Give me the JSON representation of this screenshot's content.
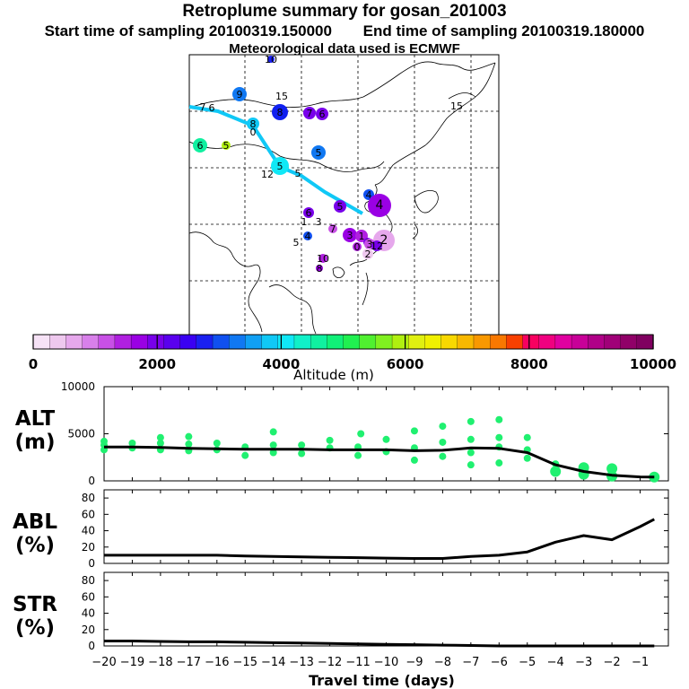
{
  "header": {
    "title": "Retroplume summary for gosan_201003",
    "start_label": "Start time of sampling 20100319.150000",
    "end_label": "End time of sampling 20100319.180000",
    "met_label": "Meteorological data used is ECMWF"
  },
  "colorbar": {
    "label": "Altitude (m)",
    "ticks": [
      "0",
      "2000",
      "4000",
      "6000",
      "8000",
      "10000"
    ],
    "colors": [
      "#f6e2f6",
      "#eec8ee",
      "#e6a8ec",
      "#d880ea",
      "#c850e6",
      "#b020e0",
      "#9a00e4",
      "#7800ea",
      "#5a00ee",
      "#3a00f2",
      "#1a20f0",
      "#1050f0",
      "#1078f2",
      "#10a0f4",
      "#10c8f6",
      "#10e8f6",
      "#10f0c8",
      "#10f0a0",
      "#10f078",
      "#20f050",
      "#50f030",
      "#80f020",
      "#b0f010",
      "#e0f010",
      "#f0f000",
      "#f8d800",
      "#f8b800",
      "#f89800",
      "#f87800",
      "#f84000",
      "#f80060",
      "#f00080",
      "#e000a0",
      "#c80098",
      "#b00088",
      "#a00078",
      "#900068",
      "#800060"
    ]
  },
  "map": {
    "markers": [
      {
        "label": "10",
        "color": "#1a20f0"
      },
      {
        "label": "9",
        "color": "#1078f2"
      },
      {
        "label": "15",
        "color": "#10a0f4"
      },
      {
        "label": "7",
        "color": "#10a0f4"
      },
      {
        "label": "6",
        "color": "#10a0f4"
      },
      {
        "label": "8",
        "color": "#1020f0"
      },
      {
        "label": "7",
        "color": "#7800ea"
      },
      {
        "label": "6",
        "color": "#7800ea"
      },
      {
        "label": "15",
        "color": "#10a0f4"
      },
      {
        "label": "8",
        "color": "#10c8f6"
      },
      {
        "label": "0",
        "color": "#10c8f6"
      },
      {
        "label": "6",
        "color": "#10f0a0"
      },
      {
        "label": "5",
        "color": "#b0f010"
      },
      {
        "label": "5",
        "color": "#1078f2"
      },
      {
        "label": "5",
        "color": "#10e8f6"
      },
      {
        "label": "12",
        "color": "#10c8f6"
      },
      {
        "label": "5",
        "color": "#10c8f6"
      },
      {
        "label": "4",
        "color": "#1050f0"
      },
      {
        "label": "4",
        "color": "#9a00e4"
      },
      {
        "label": "5",
        "color": "#7800ea"
      },
      {
        "label": "6",
        "color": "#7800ea"
      },
      {
        "label": "1",
        "color": "#10a0f4"
      },
      {
        "label": "3",
        "color": "#10a0f4"
      },
      {
        "label": "7",
        "color": "#c850e6"
      },
      {
        "label": "4",
        "color": "#1050f0"
      },
      {
        "label": "5",
        "color": "#1050f0"
      },
      {
        "label": "3",
        "color": "#9a00e4"
      },
      {
        "label": "1",
        "color": "#b020e0"
      },
      {
        "label": "6",
        "color": "#7800ea"
      },
      {
        "label": "2",
        "color": "#e6a8ec"
      },
      {
        "label": "3",
        "color": "#c850e6"
      },
      {
        "label": "0",
        "color": "#b020e0"
      },
      {
        "label": "12",
        "color": "#7800ea"
      },
      {
        "label": "2",
        "color": "#eec8ee"
      },
      {
        "label": "10",
        "color": "#b020e0"
      },
      {
        "label": "8",
        "color": "#9a00e4"
      }
    ]
  },
  "chart_data": [
    {
      "type": "scatter+line",
      "panel": "ALT",
      "ylabel": "ALT\n(m)",
      "ylim": [
        0,
        10000
      ],
      "yticks": [
        0,
        5000,
        10000
      ],
      "xlim": [
        -20,
        0
      ],
      "median_line": {
        "x": [
          -20,
          -19,
          -18,
          -17,
          -16,
          -15,
          -14,
          -13,
          -12,
          -11,
          -10,
          -9,
          -8,
          -7,
          -6,
          -5,
          -4,
          -3,
          -2,
          -1,
          -0.5
        ],
        "y": [
          3600,
          3600,
          3550,
          3450,
          3400,
          3350,
          3350,
          3350,
          3300,
          3300,
          3300,
          3200,
          3250,
          3500,
          3450,
          3000,
          1700,
          1000,
          600,
          420,
          400
        ]
      },
      "scatter_points": [
        {
          "x": -20,
          "y": 3800
        },
        {
          "x": -20,
          "y": 3300
        },
        {
          "x": -20,
          "y": 4200
        },
        {
          "x": -19,
          "y": 3500
        },
        {
          "x": -19,
          "y": 4000
        },
        {
          "x": -18,
          "y": 3300
        },
        {
          "x": -18,
          "y": 4000
        },
        {
          "x": -18,
          "y": 4600
        },
        {
          "x": -17,
          "y": 3200
        },
        {
          "x": -17,
          "y": 3900
        },
        {
          "x": -17,
          "y": 4700
        },
        {
          "x": -16,
          "y": 3300
        },
        {
          "x": -16,
          "y": 4000
        },
        {
          "x": -15,
          "y": 2700
        },
        {
          "x": -15,
          "y": 3600
        },
        {
          "x": -14,
          "y": 3000
        },
        {
          "x": -14,
          "y": 3800
        },
        {
          "x": -14,
          "y": 5200
        },
        {
          "x": -13,
          "y": 2900
        },
        {
          "x": -13,
          "y": 3800
        },
        {
          "x": -12,
          "y": 3500
        },
        {
          "x": -12,
          "y": 4300
        },
        {
          "x": -11,
          "y": 3600
        },
        {
          "x": -11,
          "y": 2700
        },
        {
          "x": -10.9,
          "y": 5000
        },
        {
          "x": -10,
          "y": 3100
        },
        {
          "x": -10,
          "y": 4400
        },
        {
          "x": -9,
          "y": 2200
        },
        {
          "x": -9,
          "y": 3500
        },
        {
          "x": -9,
          "y": 5300
        },
        {
          "x": -8,
          "y": 2600
        },
        {
          "x": -8,
          "y": 4100
        },
        {
          "x": -8,
          "y": 5800
        },
        {
          "x": -7,
          "y": 1700
        },
        {
          "x": -7,
          "y": 3000
        },
        {
          "x": -7,
          "y": 4400
        },
        {
          "x": -7,
          "y": 6300
        },
        {
          "x": -6,
          "y": 1900
        },
        {
          "x": -6,
          "y": 3600
        },
        {
          "x": -6,
          "y": 4600
        },
        {
          "x": -6,
          "y": 6500
        },
        {
          "x": -5,
          "y": 2400
        },
        {
          "x": -5,
          "y": 3300
        },
        {
          "x": -5,
          "y": 4600
        },
        {
          "x": -4,
          "y": 1000
        },
        {
          "x": -4,
          "y": 1800
        },
        {
          "x": -3,
          "y": 700
        },
        {
          "x": -3,
          "y": 1400
        },
        {
          "x": -2,
          "y": 500
        },
        {
          "x": -2,
          "y": 1300
        },
        {
          "x": -0.5,
          "y": 400
        }
      ]
    },
    {
      "type": "line",
      "panel": "ABL",
      "ylabel": "ABL\n(%)",
      "ylim": [
        0,
        90
      ],
      "yticks": [
        0,
        20,
        40,
        60,
        80
      ],
      "x": [
        -20,
        -19,
        -18,
        -17,
        -16,
        -15,
        -14,
        -13,
        -12,
        -11,
        -10,
        -9,
        -8,
        -7,
        -6,
        -5,
        -4,
        -3,
        -2,
        -1,
        -0.5
      ],
      "y": [
        10,
        10,
        10,
        10,
        10,
        9,
        8.5,
        8,
        7.5,
        7,
        6.5,
        6,
        6,
        8.5,
        10,
        14,
        26,
        34,
        29,
        45,
        54
      ]
    },
    {
      "type": "line",
      "panel": "STR",
      "ylabel": "STR\n(%)",
      "ylim": [
        0,
        90
      ],
      "yticks": [
        0,
        20,
        40,
        60,
        80
      ],
      "xlabel": "Travel time (days)",
      "xticks": [
        -20,
        -19,
        -18,
        -17,
        -16,
        -15,
        -14,
        -13,
        -12,
        -11,
        -10,
        -9,
        -8,
        -7,
        -6,
        -5,
        -4,
        -3,
        -2,
        -1
      ],
      "x": [
        -20,
        -19,
        -18,
        -17,
        -16,
        -15,
        -14,
        -13,
        -12,
        -11,
        -10,
        -9,
        -8,
        -7,
        -6,
        -5,
        -4,
        -3,
        -2,
        -1,
        -0.5
      ],
      "y": [
        6,
        6,
        5.5,
        5,
        5,
        4.5,
        4,
        3.5,
        3,
        2.5,
        2,
        1.5,
        1,
        0.5,
        0,
        0,
        0,
        0,
        0,
        0,
        0
      ]
    }
  ]
}
